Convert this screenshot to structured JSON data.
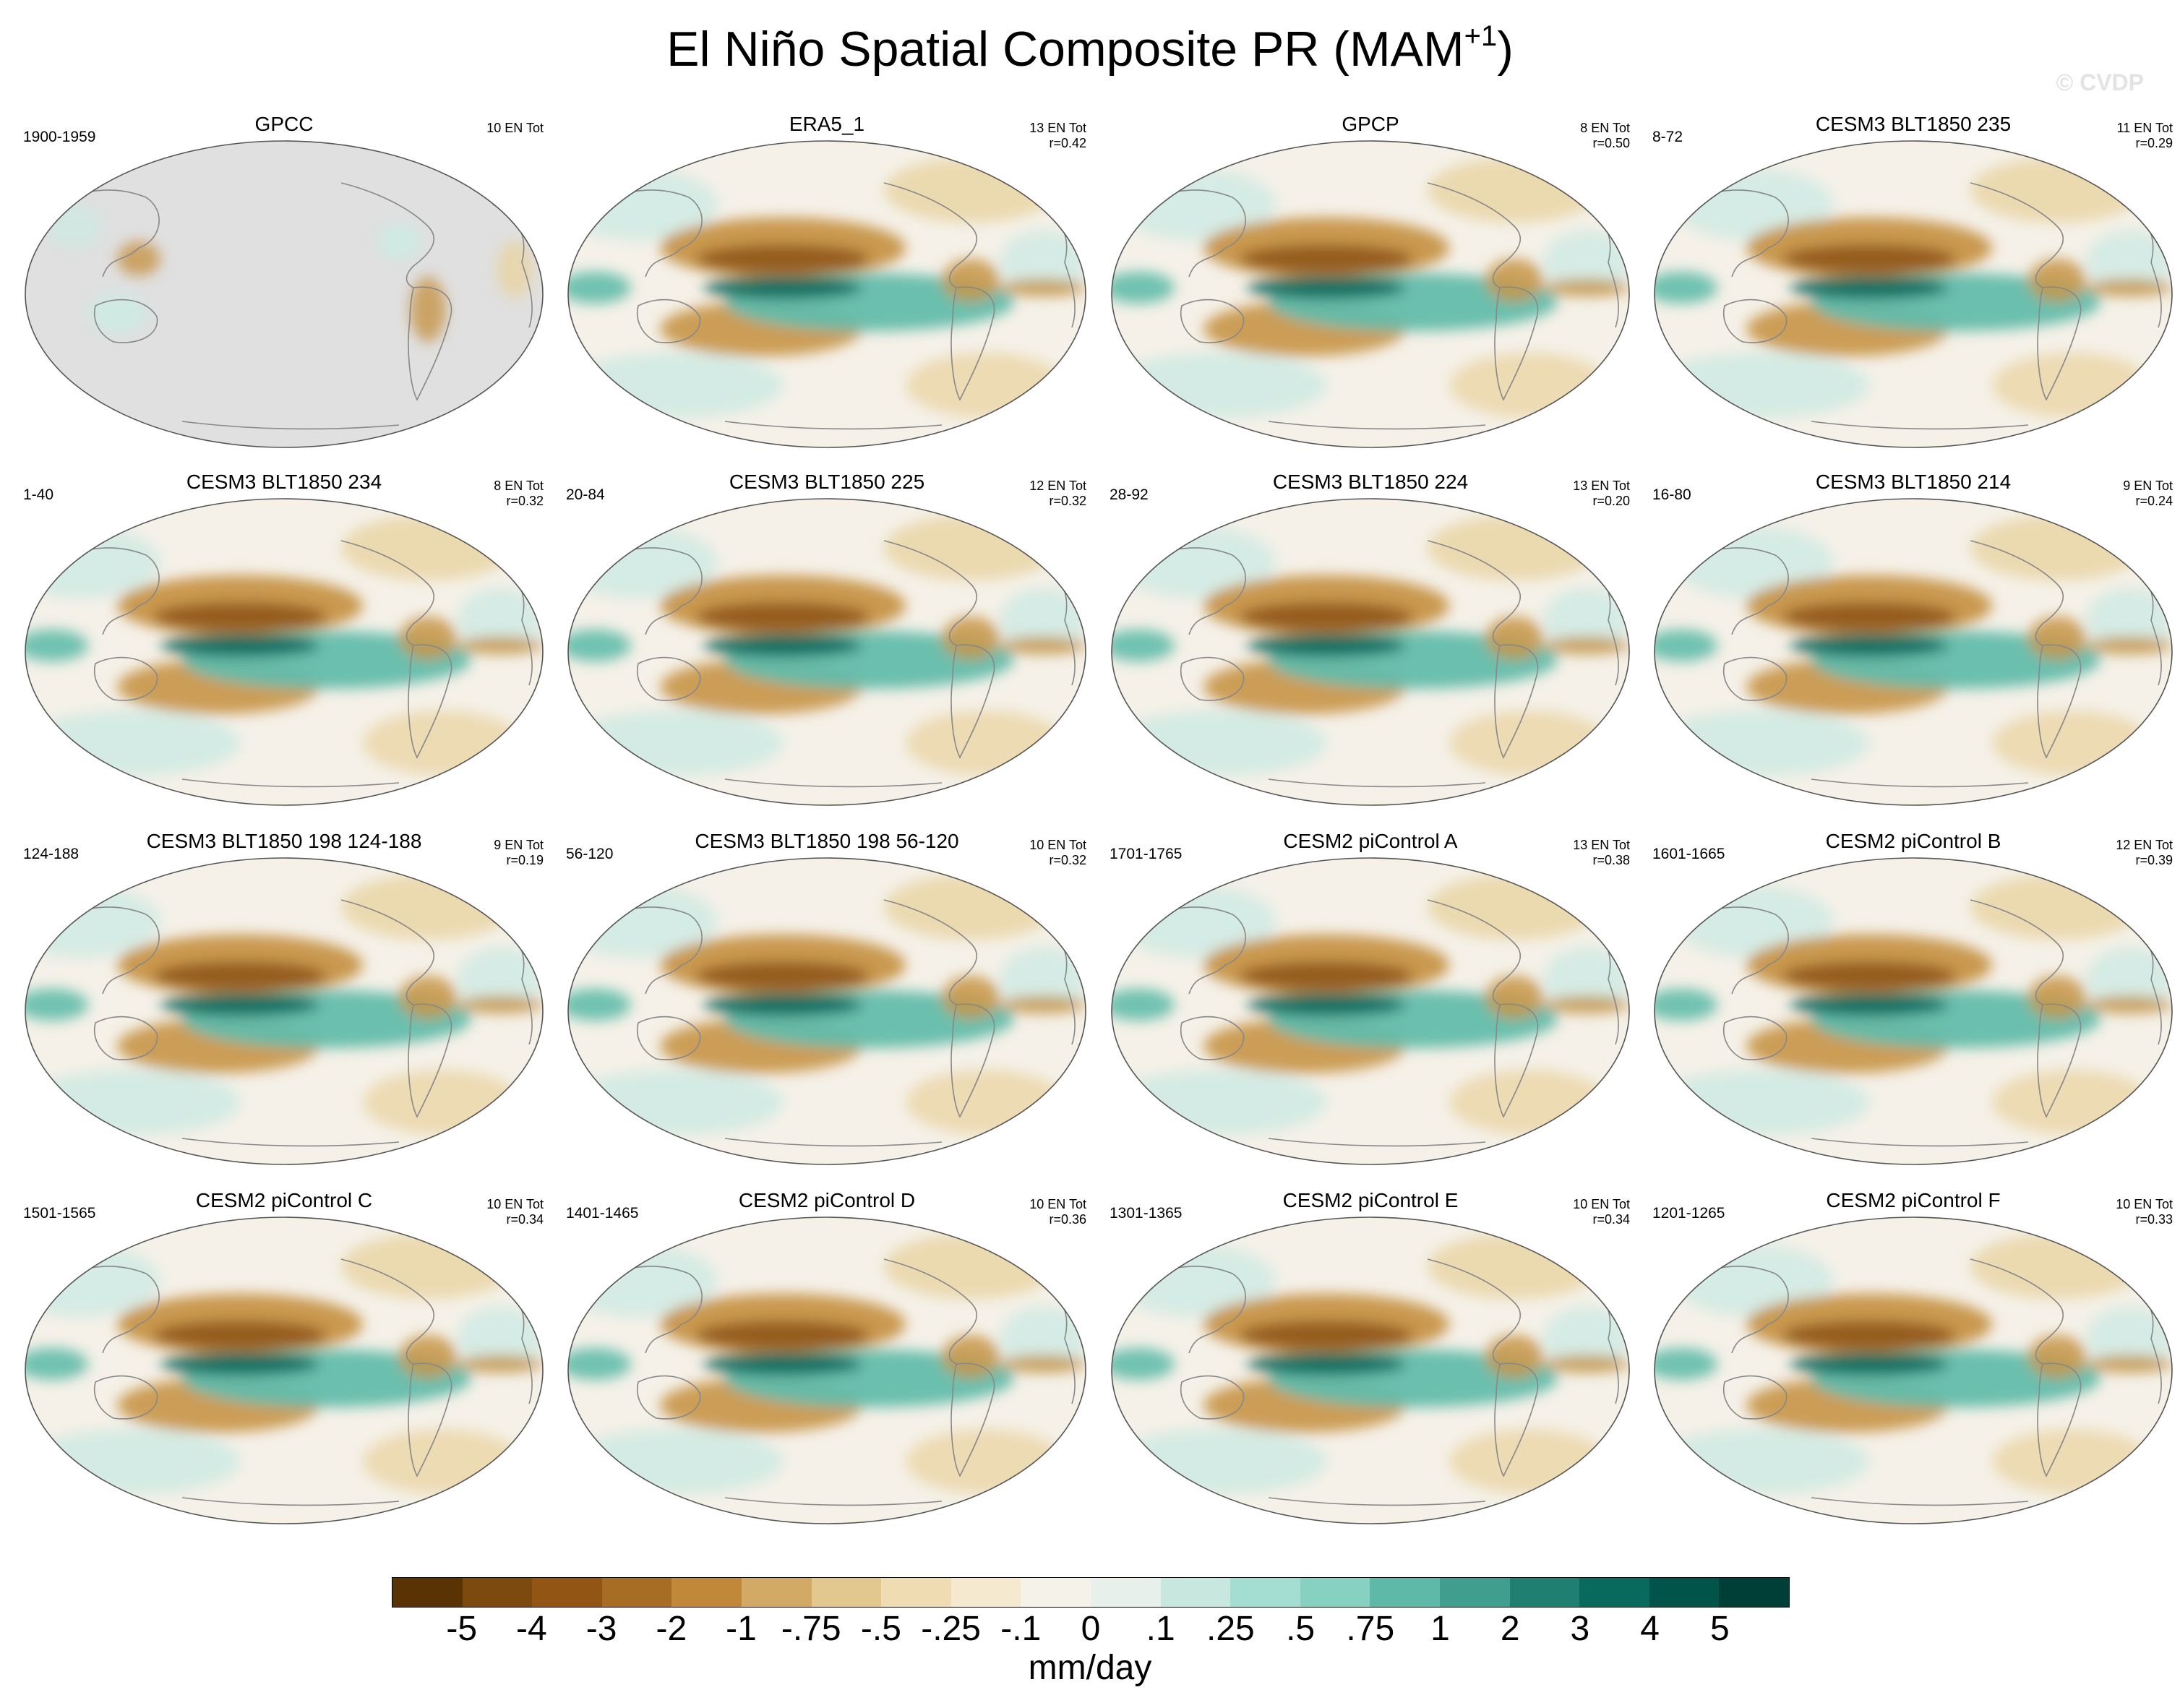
{
  "figure": {
    "title": "El Niño Spatial Composite PR (MAM",
    "title_sup": "+1",
    "title_end": ")",
    "copyright": "© CVDP"
  },
  "panels": [
    {
      "title": "GPCC",
      "years": "1900-1959",
      "events": "10 EN Tot",
      "corr": "",
      "pattern": "obs_land"
    },
    {
      "title": "ERA5_1",
      "years": "",
      "events": "13 EN Tot",
      "corr": "r=0.42",
      "pattern": "obs"
    },
    {
      "title": "GPCP",
      "years": "",
      "events": "8 EN Tot",
      "corr": "r=0.50",
      "pattern": "obs"
    },
    {
      "title": "CESM3 BLT1850 235",
      "years": "8-72",
      "events": "11 EN Tot",
      "corr": "r=0.29",
      "pattern": "model"
    },
    {
      "title": "CESM3 BLT1850 234",
      "years": "1-40",
      "events": "8 EN Tot",
      "corr": "r=0.32",
      "pattern": "model"
    },
    {
      "title": "CESM3 BLT1850 225",
      "years": "20-84",
      "events": "12 EN Tot",
      "corr": "r=0.32",
      "pattern": "model"
    },
    {
      "title": "CESM3 BLT1850 224",
      "years": "28-92",
      "events": "13 EN Tot",
      "corr": "r=0.20",
      "pattern": "model"
    },
    {
      "title": "CESM3 BLT1850 214",
      "years": "16-80",
      "events": "9 EN Tot",
      "corr": "r=0.24",
      "pattern": "model"
    },
    {
      "title": "CESM3 BLT1850 198 124-188",
      "years": "124-188",
      "events": "9 EN Tot",
      "corr": "r=0.19",
      "pattern": "model"
    },
    {
      "title": "CESM3 BLT1850 198 56-120",
      "years": "56-120",
      "events": "10 EN Tot",
      "corr": "r=0.32",
      "pattern": "model"
    },
    {
      "title": "CESM2 piControl A",
      "years": "1701-1765",
      "events": "13 EN Tot",
      "corr": "r=0.38",
      "pattern": "model"
    },
    {
      "title": "CESM2 piControl B",
      "years": "1601-1665",
      "events": "12 EN Tot",
      "corr": "r=0.39",
      "pattern": "model"
    },
    {
      "title": "CESM2 piControl C",
      "years": "1501-1565",
      "events": "10 EN Tot",
      "corr": "r=0.34",
      "pattern": "model"
    },
    {
      "title": "CESM2 piControl D",
      "years": "1401-1465",
      "events": "10 EN Tot",
      "corr": "r=0.36",
      "pattern": "model"
    },
    {
      "title": "CESM2 piControl E",
      "years": "1301-1365",
      "events": "10 EN Tot",
      "corr": "r=0.34",
      "pattern": "model"
    },
    {
      "title": "CESM2 piControl F",
      "years": "1201-1265",
      "events": "10 EN Tot",
      "corr": "r=0.33",
      "pattern": "model"
    }
  ],
  "colorbar": {
    "labels": [
      "-5",
      "-4",
      "-3",
      "-2",
      "-1",
      "-.75",
      "-.5",
      "-.25",
      "-.1",
      "0",
      ".1",
      ".25",
      ".5",
      ".75",
      "1",
      "2",
      "3",
      "4",
      "5"
    ],
    "units": "mm/day",
    "colors": [
      "#5a3305",
      "#7c4a0e",
      "#925514",
      "#a86d24",
      "#c08838",
      "#d2aa66",
      "#e2c78e",
      "#efdcb2",
      "#f5ead0",
      "#f5f2ea",
      "#e8f0ec",
      "#c7e7df",
      "#a4ddd2",
      "#86d1c2",
      "#5fb9a9",
      "#3f9e8e",
      "#1f8072",
      "#08695d",
      "#00544a",
      "#003f37"
    ]
  },
  "palette": {
    "dry_strong": "#8f5516",
    "dry_mid": "#c69447",
    "dry_light": "#e9d3a1",
    "neutral": "#f5f1e8",
    "wet_light": "#cdeae3",
    "wet_mid": "#62bcab",
    "wet_strong": "#0c6c5f",
    "missing": "#e0e0e0",
    "coast": "#888888"
  }
}
